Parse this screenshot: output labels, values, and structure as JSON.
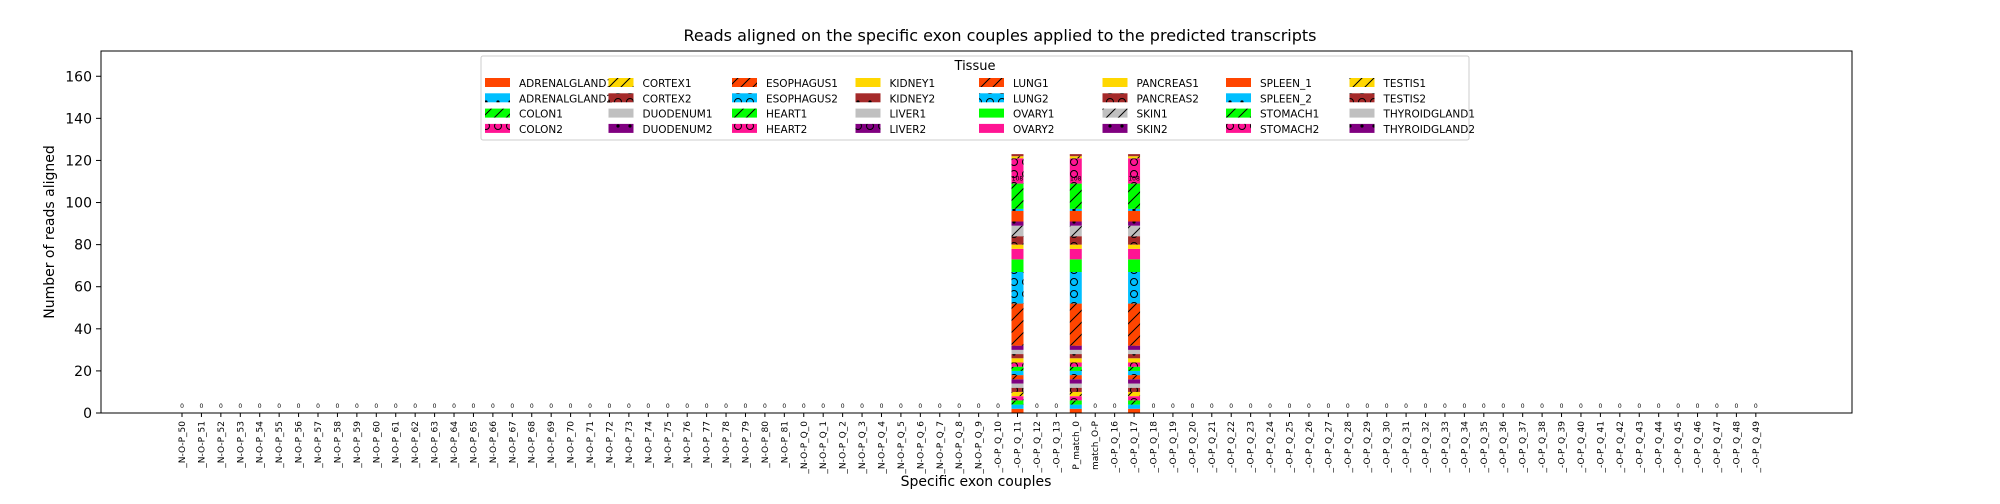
{
  "chart_data": {
    "type": "bar",
    "title": "Reads aligned on the specific exon couples applied to the predicted transcripts",
    "xlabel": "Specific exon couples",
    "ylabel": "Number of reads aligned",
    "ylim": [
      0,
      172
    ],
    "yticks": [
      0,
      20,
      40,
      60,
      80,
      100,
      120,
      140,
      160
    ],
    "grid": false,
    "legend": {
      "title": "Tissue",
      "placement": "top-center",
      "columns": 8
    },
    "categories": [
      "_N-O-P_50",
      "_N-O-P_51",
      "_N-O-P_52",
      "_N-O-P_53",
      "_N-O-P_54",
      "_N-O-P_55",
      "_N-O-P_56",
      "_N-O-P_57",
      "_N-O-P_58",
      "_N-O-P_59",
      "_N-O-P_60",
      "_N-O-P_61",
      "_N-O-P_62",
      "_N-O-P_63",
      "_N-O-P_64",
      "_N-O-P_65",
      "_N-O-P_66",
      "_N-O-P_67",
      "_N-O-P_68",
      "_N-O-P_69",
      "_N-O-P_70",
      "_N-O-P_71",
      "_N-O-P_72",
      "_N-O-P_73",
      "_N-O-P_74",
      "_N-O-P_75",
      "_N-O-P_76",
      "_N-O-P_77",
      "_N-O-P_78",
      "_N-O-P_79",
      "_N-O-P_80",
      "_N-O-P_81",
      "_N-O-P_Q_0",
      "_N-O-P_Q_1",
      "_N-O-P_Q_2",
      "_N-O-P_Q_3",
      "_N-O-P_Q_4",
      "_N-O-P_Q_5",
      "_N-O-P_Q_6",
      "_N-O-P_Q_7",
      "_N-O-P_Q_8",
      "_N-O-P_Q_9",
      "_-O-P_Q_10",
      "_-O-P_Q_11",
      "_-O-P_Q_12",
      "_-O-P_Q_13",
      "P_match_0",
      "match_O-P",
      "_-O-P_Q_16",
      "_-O-P_Q_17",
      "_-O-P_Q_18",
      "_-O-P_Q_19",
      "_-O-P_Q_20",
      "_-O-P_Q_21",
      "_-O-P_Q_22",
      "_-O-P_Q_23",
      "_-O-P_Q_24",
      "_-O-P_Q_25",
      "_-O-P_Q_26",
      "_-O-P_Q_27",
      "_-O-P_Q_28",
      "_-O-P_Q_29",
      "_-O-P_Q_30",
      "_-O-P_Q_31",
      "_-O-P_Q_32",
      "_-O-P_Q_33",
      "_-O-P_Q_34",
      "_-O-P_Q_35",
      "_-O-P_Q_36",
      "_-O-P_Q_37",
      "_-O-P_Q_38",
      "_-O-P_Q_39",
      "_-O-P_Q_40",
      "_-O-P_Q_41",
      "_-O-P_Q_42",
      "_-O-P_Q_43",
      "_-O-P_Q_44",
      "_-O-P_Q_45",
      "_-O-P_Q_46",
      "_-O-P_Q_47",
      "_-O-P_Q_48",
      "_-O-P_Q_49"
    ],
    "totals": [
      0,
      0,
      0,
      0,
      0,
      0,
      0,
      0,
      0,
      0,
      0,
      0,
      0,
      0,
      0,
      0,
      0,
      0,
      0,
      0,
      0,
      0,
      0,
      0,
      0,
      0,
      0,
      0,
      0,
      0,
      0,
      0,
      0,
      0,
      0,
      0,
      0,
      0,
      0,
      0,
      0,
      0,
      0,
      108,
      0,
      0,
      108,
      0,
      0,
      108,
      0,
      0,
      0,
      0,
      0,
      0,
      0,
      0,
      0,
      0,
      0,
      0,
      0,
      0,
      0,
      0,
      0,
      0,
      0,
      0,
      0,
      0,
      0,
      0,
      0,
      0,
      0,
      0,
      0,
      0,
      0,
      0
    ],
    "series": [
      {
        "name": "ADRENALGLAND1",
        "color": "#ff4500",
        "hatch": "none",
        "stack": 2
      },
      {
        "name": "ADRENALGLAND2",
        "color": "#00bfff",
        "hatch": "dots",
        "stack": 2
      },
      {
        "name": "COLON1",
        "color": "#00ff00",
        "hatch": "slash",
        "stack": 2
      },
      {
        "name": "COLON2",
        "color": "#ff1493",
        "hatch": "circles",
        "stack": 2
      },
      {
        "name": "CORTEX1",
        "color": "#ffd700",
        "hatch": "slash",
        "stack": 2
      },
      {
        "name": "CORTEX2",
        "color": "#a52a2a",
        "hatch": "circles",
        "stack": 2
      },
      {
        "name": "DUODENUM1",
        "color": "#c0c0c0",
        "hatch": "none",
        "stack": 2
      },
      {
        "name": "DUODENUM2",
        "color": "#800080",
        "hatch": "dots",
        "stack": 2
      },
      {
        "name": "ESOPHAGUS1",
        "color": "#ff4500",
        "hatch": "slash",
        "stack": 2
      },
      {
        "name": "ESOPHAGUS2",
        "color": "#00bfff",
        "hatch": "circles",
        "stack": 2
      },
      {
        "name": "HEART1",
        "color": "#00ff00",
        "hatch": "slash",
        "stack": 2
      },
      {
        "name": "HEART2",
        "color": "#ff1493",
        "hatch": "circles",
        "stack": 2
      },
      {
        "name": "KIDNEY1",
        "color": "#ffd700",
        "hatch": "none",
        "stack": 2
      },
      {
        "name": "KIDNEY2",
        "color": "#a52a2a",
        "hatch": "dots",
        "stack": 2
      },
      {
        "name": "LIVER1",
        "color": "#c0c0c0",
        "hatch": "none",
        "stack": 2
      },
      {
        "name": "LIVER2",
        "color": "#800080",
        "hatch": "circles",
        "stack": 2
      },
      {
        "name": "LUNG1",
        "color": "#ff4500",
        "hatch": "slash",
        "stack": 20
      },
      {
        "name": "LUNG2",
        "color": "#00bfff",
        "hatch": "circles",
        "stack": 15
      },
      {
        "name": "OVARY1",
        "color": "#00ff00",
        "hatch": "none",
        "stack": 6
      },
      {
        "name": "OVARY2",
        "color": "#ff1493",
        "hatch": "none",
        "stack": 5
      },
      {
        "name": "PANCREAS1",
        "color": "#ffd700",
        "hatch": "none",
        "stack": 2
      },
      {
        "name": "PANCREAS2",
        "color": "#a52a2a",
        "hatch": "circles",
        "stack": 4
      },
      {
        "name": "SKIN1",
        "color": "#c0c0c0",
        "hatch": "slash",
        "stack": 5
      },
      {
        "name": "SKIN2",
        "color": "#800080",
        "hatch": "dots",
        "stack": 2
      },
      {
        "name": "SPLEEN_1",
        "color": "#ff4500",
        "hatch": "none",
        "stack": 5
      },
      {
        "name": "SPLEEN_2",
        "color": "#00bfff",
        "hatch": "dots",
        "stack": 1
      },
      {
        "name": "STOMACH1",
        "color": "#00ff00",
        "hatch": "slash",
        "stack": 12
      },
      {
        "name": "STOMACH2",
        "color": "#ff1493",
        "hatch": "circles",
        "stack": 12
      },
      {
        "name": "TESTIS1",
        "color": "#ffd700",
        "hatch": "slash",
        "stack": 1
      },
      {
        "name": "TESTIS2",
        "color": "#a52a2a",
        "hatch": "circles",
        "stack": 1
      },
      {
        "name": "THYROIDGLAND1",
        "color": "#c0c0c0",
        "hatch": "none",
        "stack": 0
      },
      {
        "name": "THYROIDGLAND2",
        "color": "#800080",
        "hatch": "dots",
        "stack": 0
      }
    ]
  }
}
